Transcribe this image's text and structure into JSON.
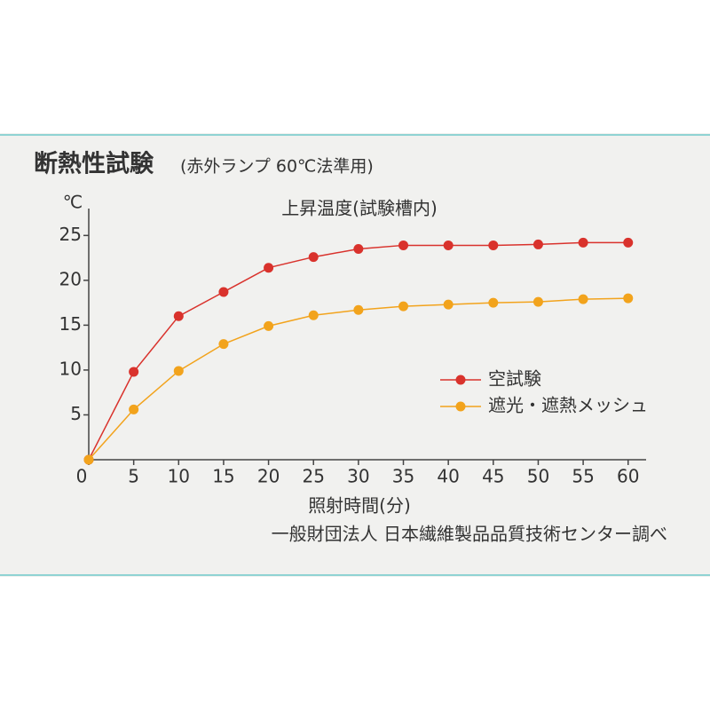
{
  "chart_data": {
    "type": "line",
    "title": "断熱性試験",
    "subtitle": "(赤外ランプ 60℃法準用)",
    "y_unit": "℃",
    "chart_label": "上昇温度(試験槽内)",
    "x_label": "照射時間(分)",
    "source": "一般財団法人 日本繊維製品品質技術センター調べ",
    "x": [
      0,
      5,
      10,
      15,
      20,
      25,
      30,
      35,
      40,
      45,
      50,
      55,
      60
    ],
    "series": [
      {
        "name": "空試験",
        "color": "#d9322c",
        "values": [
          0,
          9.8,
          16,
          18.7,
          21.4,
          22.6,
          23.5,
          23.9,
          23.9,
          23.9,
          24.0,
          24.2,
          24.2
        ]
      },
      {
        "name": "遮光・遮熱メッシュ",
        "color": "#f2a31c",
        "values": [
          0,
          5.6,
          9.9,
          12.9,
          14.9,
          16.1,
          16.7,
          17.1,
          17.3,
          17.5,
          17.6,
          17.9,
          18.0
        ]
      }
    ],
    "xlim": [
      0,
      62
    ],
    "ylim": [
      0,
      28
    ],
    "xticks": [
      0,
      5,
      10,
      15,
      20,
      25,
      30,
      35,
      40,
      45,
      50,
      55,
      60
    ],
    "yticks": [
      5,
      10,
      15,
      20,
      25
    ]
  }
}
